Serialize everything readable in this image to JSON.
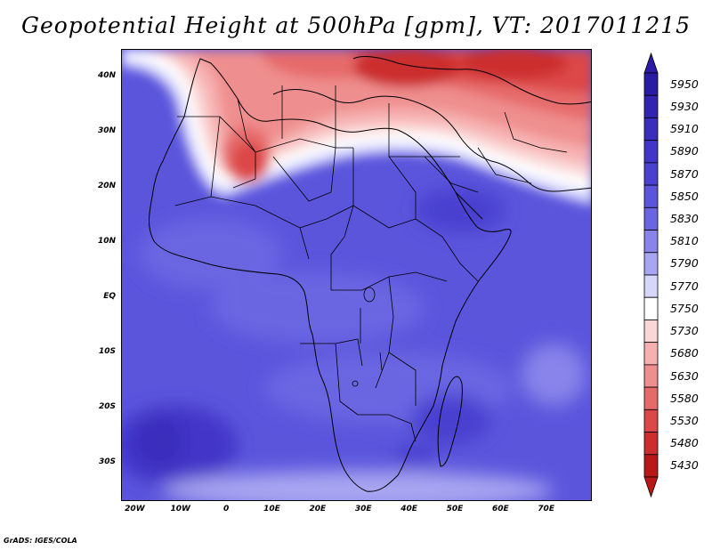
{
  "title": "Geopotential Height at 500hPa [gpm], VT: 2017011215",
  "credit": "GrADS: IGES/COLA",
  "map": {
    "variable": "Geopotential Height at 500hPa",
    "units": "gpm",
    "valid_time": "2017011215",
    "lon_range": [
      -23,
      80
    ],
    "lat_range": [
      -37,
      45
    ],
    "lat_ticks": [
      "40N",
      "30N",
      "20N",
      "10N",
      "EQ",
      "10S",
      "20S",
      "30S"
    ],
    "lat_values": [
      40,
      30,
      20,
      10,
      0,
      -10,
      -20,
      -30
    ],
    "lon_ticks": [
      "20W",
      "10W",
      "0",
      "10E",
      "20E",
      "30E",
      "40E",
      "50E",
      "60E",
      "70E"
    ],
    "lon_values": [
      -20,
      -10,
      0,
      10,
      20,
      30,
      40,
      50,
      60,
      70
    ]
  },
  "colorbar": {
    "labels": [
      "5950",
      "5930",
      "5910",
      "5890",
      "5870",
      "5850",
      "5830",
      "5810",
      "5790",
      "5770",
      "5750",
      "5730",
      "5680",
      "5630",
      "5580",
      "5530",
      "5480",
      "5430"
    ],
    "colors": [
      "#2a1ba4",
      "#3224b0",
      "#3a2dbd",
      "#4236c8",
      "#4a41d0",
      "#5b55dc",
      "#6a66e2",
      "#8884ea",
      "#a8a6f1",
      "#d6d6fb",
      "#ffffff",
      "#fbd6d6",
      "#f6b0b0",
      "#ef8e8e",
      "#e66a6a",
      "#dc4747",
      "#cc2e2e",
      "#b81818"
    ],
    "top_arrow_color": "#2a1ba4",
    "bottom_arrow_color": "#b81818"
  }
}
